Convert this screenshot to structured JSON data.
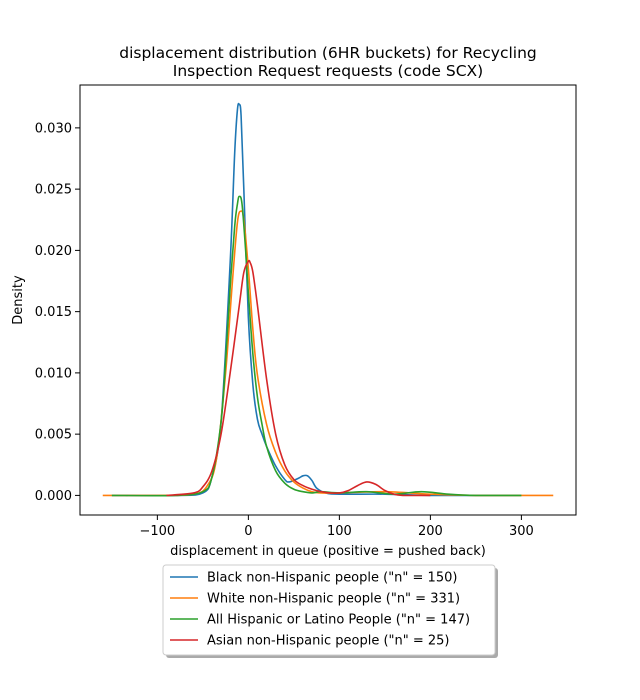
{
  "chart_data": {
    "type": "line",
    "title_lines": [
      "displacement distribution (6HR buckets) for Recycling",
      "Inspection Request requests (code SCX)"
    ],
    "xlabel": "displacement in queue (positive = pushed back)",
    "ylabel": "Density",
    "xlim": [
      -185,
      360
    ],
    "ylim": [
      -0.0016,
      0.0335
    ],
    "xticks": [
      -100,
      0,
      100,
      200,
      300
    ],
    "xtick_labels": [
      "−100",
      "0",
      "100",
      "200",
      "300"
    ],
    "yticks": [
      0.0,
      0.005,
      0.01,
      0.015,
      0.02,
      0.025,
      0.03
    ],
    "ytick_labels": [
      "0.000",
      "0.005",
      "0.010",
      "0.015",
      "0.020",
      "0.025",
      "0.030"
    ],
    "grid": false,
    "legend_position": "below",
    "series": [
      {
        "name": "Black non-Hispanic people (\"n\" = 150)",
        "color": "#1f77b4",
        "x": [
          -150,
          -80,
          -50,
          -40,
          -30,
          -20,
          -15,
          -12,
          -10,
          -8,
          -5,
          0,
          5,
          10,
          15,
          20,
          30,
          40,
          45,
          55,
          60,
          65,
          70,
          75,
          85,
          100,
          150,
          200,
          250,
          300
        ],
        "y": [
          0.0,
          0.0,
          0.0002,
          0.0015,
          0.006,
          0.019,
          0.028,
          0.0315,
          0.0319,
          0.031,
          0.025,
          0.0145,
          0.009,
          0.0062,
          0.005,
          0.004,
          0.0024,
          0.0013,
          0.0011,
          0.0014,
          0.0016,
          0.0016,
          0.0012,
          0.0006,
          0.0002,
          0.0001,
          0.0001,
          0.0,
          0.0,
          0.0
        ]
      },
      {
        "name": "White non-Hispanic people (\"n\" = 331)",
        "color": "#ff7f0e",
        "x": [
          -160,
          -100,
          -60,
          -45,
          -35,
          -25,
          -18,
          -12,
          -8,
          -5,
          0,
          5,
          10,
          20,
          30,
          40,
          50,
          60,
          70,
          80,
          100,
          150,
          200,
          250,
          300,
          335
        ],
        "y": [
          0.0,
          0.0,
          0.0001,
          0.0008,
          0.003,
          0.01,
          0.017,
          0.0223,
          0.0232,
          0.0225,
          0.0185,
          0.0135,
          0.0098,
          0.0058,
          0.0035,
          0.002,
          0.0011,
          0.0006,
          0.0003,
          0.0002,
          0.0002,
          0.0003,
          0.0001,
          0.0,
          0.0,
          0.0
        ]
      },
      {
        "name": "All Hispanic or Latino People (\"n\" = 147)",
        "color": "#2ca02c",
        "x": [
          -150,
          -80,
          -50,
          -40,
          -30,
          -25,
          -20,
          -15,
          -12,
          -10,
          -7,
          -3,
          0,
          5,
          10,
          15,
          20,
          30,
          40,
          50,
          60,
          70,
          80,
          100,
          130,
          160,
          190,
          220,
          250,
          300
        ],
        "y": [
          0.0,
          0.0,
          0.0003,
          0.0015,
          0.006,
          0.011,
          0.017,
          0.022,
          0.0238,
          0.0244,
          0.0238,
          0.02,
          0.0165,
          0.0115,
          0.008,
          0.0058,
          0.004,
          0.002,
          0.001,
          0.0005,
          0.0003,
          0.0002,
          0.0003,
          0.0002,
          0.0003,
          0.0001,
          0.0003,
          0.0001,
          0.0,
          0.0
        ]
      },
      {
        "name": "Asian non-Hispanic people (\"n\" = 25)",
        "color": "#d62728",
        "x": [
          -90,
          -60,
          -50,
          -40,
          -30,
          -20,
          -10,
          -5,
          0,
          2,
          5,
          10,
          20,
          30,
          40,
          50,
          60,
          70,
          80,
          90,
          100,
          110,
          120,
          130,
          140,
          150,
          160,
          170,
          180,
          200
        ],
        "y": [
          0.0,
          0.0002,
          0.0007,
          0.002,
          0.005,
          0.01,
          0.0155,
          0.0182,
          0.0191,
          0.019,
          0.0182,
          0.0155,
          0.0095,
          0.005,
          0.0025,
          0.0013,
          0.0008,
          0.0005,
          0.0003,
          0.0002,
          0.0002,
          0.0004,
          0.0008,
          0.0011,
          0.0009,
          0.0004,
          0.0001,
          0.0,
          0.0,
          0.0
        ]
      }
    ]
  }
}
